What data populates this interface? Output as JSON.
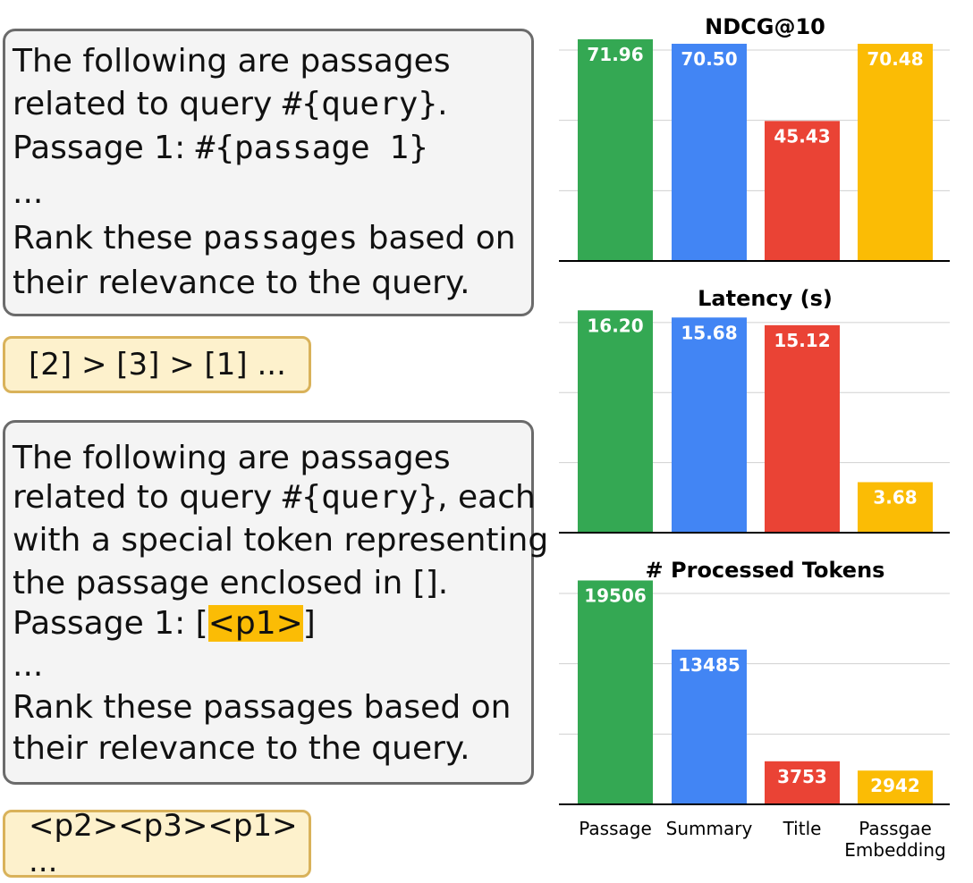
{
  "prompt1": {
    "line1": "The following are passages",
    "line2_pre": "related to query ",
    "line2_code": "#{query}",
    "line2_post": ".",
    "line3_pre": "Passage 1: ",
    "line3_code": "#{passage 1}",
    "line4": "...",
    "line5_pre": "Rank these ",
    "line5_code": "passages",
    "line5_post": " based on",
    "line6": "their relevance to the query."
  },
  "output1": "[2] > [3] > [1] ...",
  "prompt2": {
    "line1": "The following are passages",
    "line2_pre": "related to query ",
    "line2_code": "#{query}",
    "line2_post": ", each",
    "line3": "with a special token representing",
    "line4": "the passage enclosed in [].",
    "line5_pre": "Passage 1: [",
    "line5_hl": "<p1>",
    "line5_post": "]",
    "line6": "...",
    "line7": "Rank these passages based on",
    "line8": "their relevance to the query."
  },
  "output2": "<p2><p3><p1> ...",
  "chart_data": [
    {
      "type": "bar",
      "title": "NDCG@10",
      "categories": [
        "Passage",
        "Summary",
        "Title",
        "Passgae Embedding"
      ],
      "values": [
        71.96,
        70.5,
        45.43,
        70.48
      ],
      "value_labels": [
        "71.96",
        "70.50",
        "45.43",
        "70.48"
      ],
      "ylim": [
        0,
        76
      ],
      "grid": true
    },
    {
      "type": "bar",
      "title": "Latency (s)",
      "categories": [
        "Passage",
        "Summary",
        "Title",
        "Passgae Embedding"
      ],
      "values": [
        16.2,
        15.68,
        15.12,
        3.68
      ],
      "value_labels": [
        "16.20",
        "15.68",
        "15.12",
        "3.68"
      ],
      "ylim": [
        0,
        17
      ],
      "grid": true
    },
    {
      "type": "bar",
      "title": "# Processed Tokens",
      "categories": [
        "Passage",
        "Summary",
        "Title",
        "Passgae Embedding"
      ],
      "values": [
        19506,
        13485,
        3753,
        2942
      ],
      "value_labels": [
        "19506",
        "13485",
        "3753",
        "2942"
      ],
      "ylim": [
        0,
        20400
      ],
      "grid": true
    }
  ],
  "category_labels": [
    "Passage",
    "Summary",
    "Title",
    "Passgae",
    "Embedding"
  ],
  "colors": {
    "passage": "#34a853",
    "summary": "#4285f4",
    "title": "#ea4335",
    "embedding": "#fbbc05"
  }
}
